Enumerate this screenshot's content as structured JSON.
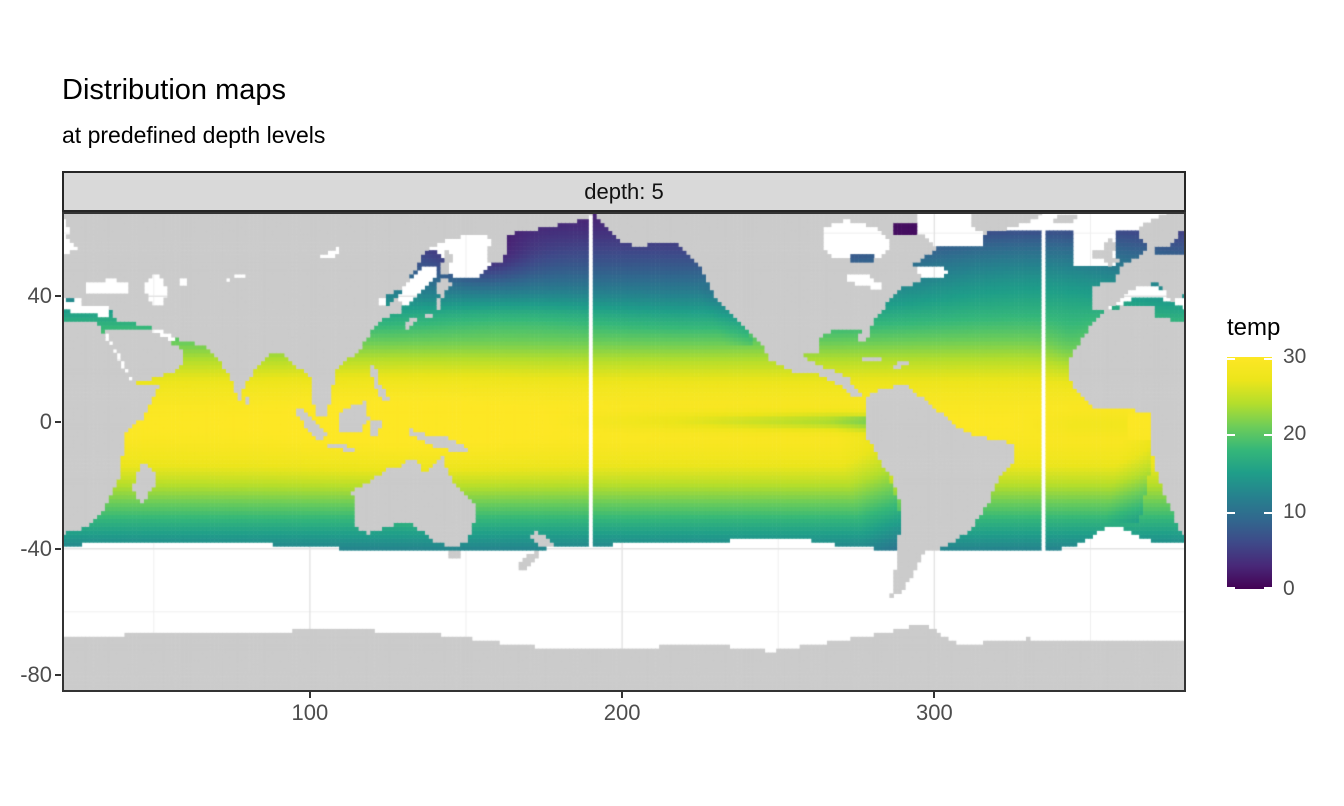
{
  "header": {
    "title": "Distribution maps",
    "subtitle": "at predefined depth levels"
  },
  "facet": {
    "label": "depth: 5"
  },
  "chart_data": {
    "type": "heatmap",
    "subtype": "raster-world-map",
    "title": "Distribution maps",
    "subtitle": "at predefined depth levels",
    "facet_label": "depth: 5",
    "variable": "temp",
    "projection": "equirectangular, Pacific-centered, longitudes 20–380",
    "x": {
      "label": "",
      "ticks": [
        100,
        200,
        300
      ],
      "minor_ticks": [
        50,
        150,
        250,
        350
      ],
      "range": [
        20.6,
        380.6
      ]
    },
    "y": {
      "label": "",
      "ticks": [
        40,
        0,
        -40,
        -80
      ],
      "minor_ticks": [
        60,
        20,
        -20,
        -60
      ],
      "range": [
        -85.4,
        66.7
      ]
    },
    "legend": {
      "title": "temp",
      "ticks": [
        0,
        10,
        20,
        30
      ],
      "limits": [
        0,
        30
      ],
      "palette": "viridis"
    },
    "viridis_stops": [
      [
        68,
        1,
        84
      ],
      [
        72,
        40,
        120
      ],
      [
        62,
        74,
        137
      ],
      [
        49,
        104,
        142
      ],
      [
        38,
        130,
        142
      ],
      [
        31,
        158,
        137
      ],
      [
        53,
        183,
        121
      ],
      [
        109,
        205,
        89
      ],
      [
        180,
        222,
        44
      ],
      [
        236,
        229,
        27
      ],
      [
        253,
        231,
        37
      ]
    ],
    "no_data_gap_lons": [
      190,
      335
    ],
    "field_summary": "Sea-surface temperature at depth level 5: ~30°C along the equator fading to ~0°C near 60–65°N; no data south of ~ -40° latitude, in Arctic/Nordic seas, Sea of Okhotsk/Japan, Mediterranean, Hudson Bay; land shown in grey; two vertical white no-data gap columns near lon 190 and 335",
    "colors": {
      "land": "#cbcbcb",
      "no_data": "#ffffff",
      "grid_major": "#e3e3e3",
      "grid_minor": "#efefef",
      "panel_border": "#333333",
      "strip_fill": "#d9d9d9",
      "strip_border": "#262626",
      "axis_text": "#4d4d4d",
      "title_text": "#000000"
    }
  }
}
